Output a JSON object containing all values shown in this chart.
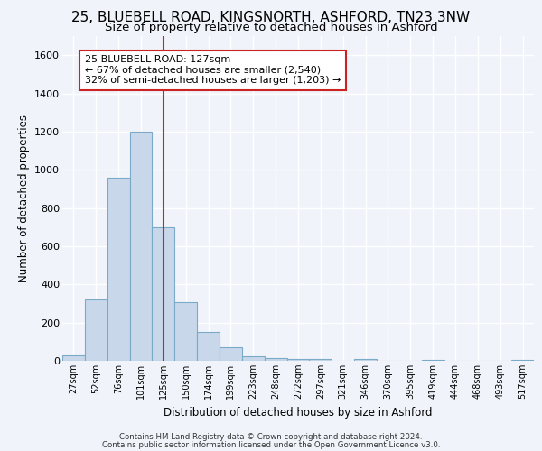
{
  "title_line1": "25, BLUEBELL ROAD, KINGSNORTH, ASHFORD, TN23 3NW",
  "title_line2": "Size of property relative to detached houses in Ashford",
  "xlabel": "Distribution of detached houses by size in Ashford",
  "ylabel": "Number of detached properties",
  "footnote_line1": "Contains HM Land Registry data © Crown copyright and database right 2024.",
  "footnote_line2": "Contains public sector information licensed under the Open Government Licence v3.0.",
  "bar_labels": [
    "27sqm",
    "52sqm",
    "76sqm",
    "101sqm",
    "125sqm",
    "150sqm",
    "174sqm",
    "199sqm",
    "223sqm",
    "248sqm",
    "272sqm",
    "297sqm",
    "321sqm",
    "346sqm",
    "370sqm",
    "395sqm",
    "419sqm",
    "444sqm",
    "468sqm",
    "493sqm",
    "517sqm"
  ],
  "bar_values": [
    30,
    320,
    960,
    1200,
    700,
    305,
    150,
    70,
    25,
    15,
    10,
    10,
    0,
    10,
    0,
    0,
    5,
    0,
    0,
    0,
    5
  ],
  "bar_color": "#c8d8ea",
  "bar_edge_color": "#7aaac8",
  "vline_x_index": 4,
  "vline_color": "#cc2222",
  "annotation_text": "25 BLUEBELL ROAD: 127sqm\n← 67% of detached houses are smaller (2,540)\n32% of semi-detached houses are larger (1,203) →",
  "annotation_box_facecolor": "#ffffff",
  "annotation_box_edgecolor": "#cc2222",
  "ylim_max": 1700,
  "yticks": [
    0,
    200,
    400,
    600,
    800,
    1000,
    1200,
    1400,
    1600
  ],
  "bg_color": "#f0f4fa",
  "grid_color": "#e0e8f0",
  "title1_fontsize": 11,
  "title2_fontsize": 9.5
}
